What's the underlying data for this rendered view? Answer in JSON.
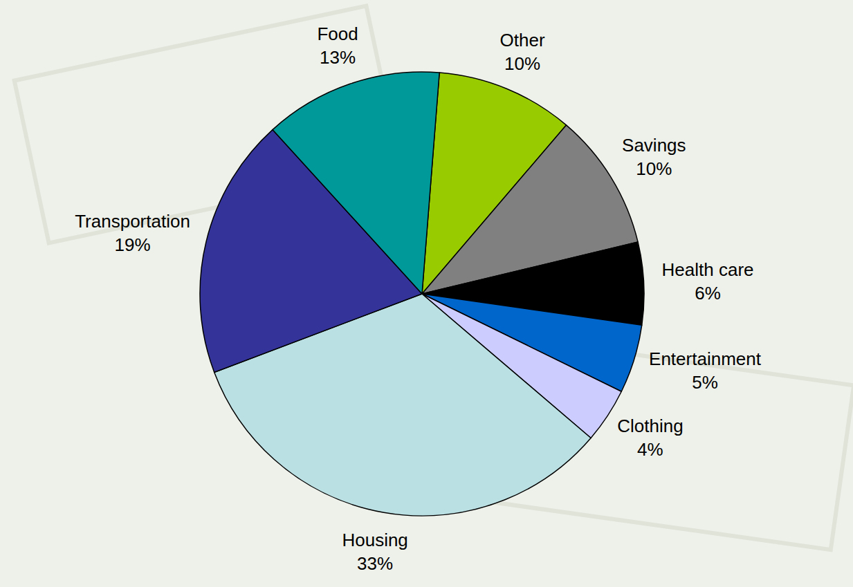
{
  "chart_data": {
    "type": "pie",
    "categories": [
      "Other",
      "Savings",
      "Health care",
      "Entertainment",
      "Clothing",
      "Housing",
      "Transportation",
      "Food"
    ],
    "values": [
      10,
      10,
      6,
      5,
      4,
      33,
      19,
      13
    ],
    "value_labels": [
      "10%",
      "10%",
      "6%",
      "5%",
      "4%",
      "33%",
      "19%",
      "13%"
    ],
    "colors": [
      "#99cc00",
      "#808080",
      "#000000",
      "#0066cc",
      "#ccccff",
      "#bbe0e3",
      "#333399",
      "#009999"
    ],
    "data_labels": true
  }
}
